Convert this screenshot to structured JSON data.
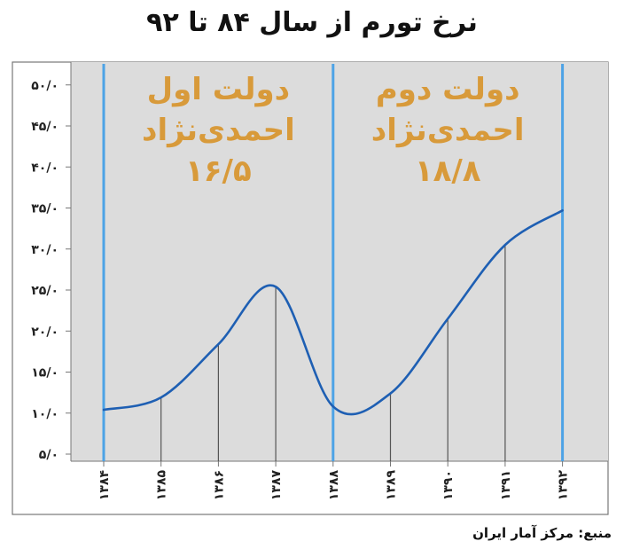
{
  "chart_data": {
    "type": "line",
    "title": "نرخ تورم از سال ۸۴ تا ۹۲",
    "source": "منبع: مرکز آمار ایران",
    "xlabel": "",
    "ylabel": "",
    "ylim": [
      5,
      52
    ],
    "yticks": [
      "۵/۰",
      "۱۰/۰",
      "۱۵/۰",
      "۲۰/۰",
      "۲۵/۰",
      "۳۰/۰",
      "۳۵/۰",
      "۴۰/۰",
      "۴۵/۰",
      "۵۰/۰"
    ],
    "ytick_values": [
      5,
      10,
      15,
      20,
      25,
      30,
      35,
      40,
      45,
      50
    ],
    "categories": [
      "۱۳۸۴",
      "۱۳۸۵",
      "۱۳۸۶",
      "۱۳۸۷",
      "۱۳۸۸",
      "۱۳۸۹",
      "۱۳۹۰",
      "۱۳۹۱",
      "۱۳۹۲"
    ],
    "values": [
      10.4,
      11.9,
      18.4,
      25.4,
      10.8,
      12.4,
      21.5,
      30.5,
      34.7
    ],
    "grid": false,
    "dividers_at": [
      "۱۳۸۴",
      "۱۳۸۸",
      "۱۳۹۲"
    ],
    "annotations": [
      {
        "lines": [
          "دولت اول",
          "احمدی‌نژاد",
          "۱۶/۵"
        ],
        "over_range": [
          "۱۳۸۴",
          "۱۳۸۸"
        ]
      },
      {
        "lines": [
          "دولت دوم",
          "احمدی‌نژاد",
          "۱۸/۸"
        ],
        "over_range": [
          "۱۳۸۸",
          "۱۳۹۲"
        ]
      }
    ]
  },
  "colors": {
    "plot_background": "#dcdcdc",
    "line": "#1e5fb3",
    "divider": "#4da3e6",
    "annotation": "#d89a3a",
    "drop_line": "#555555",
    "frame": "#777777"
  }
}
